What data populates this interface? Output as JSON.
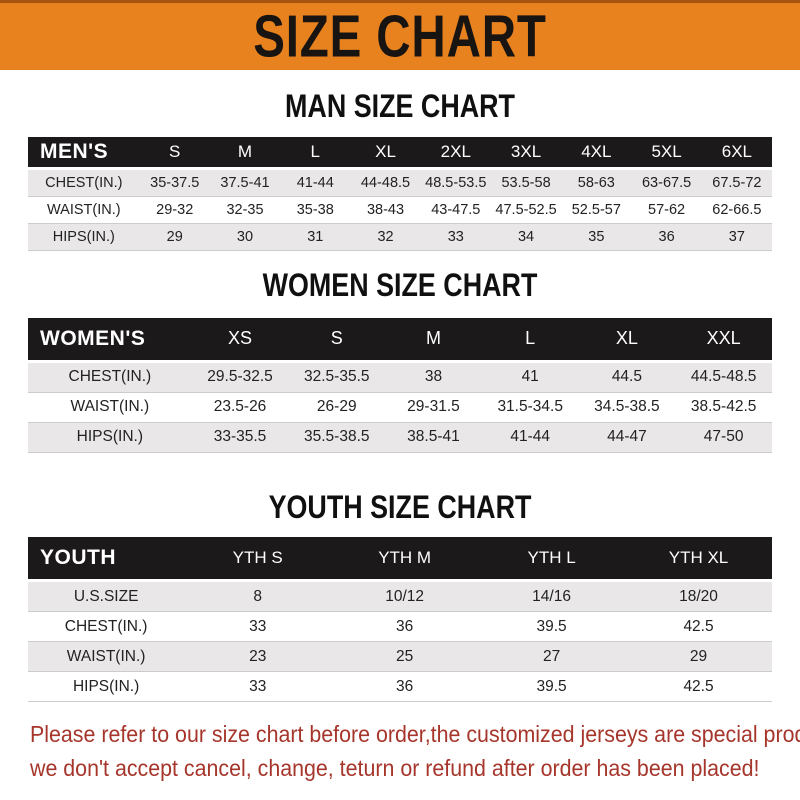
{
  "banner": {
    "title": "SIZE CHART",
    "background_color": "#E8821E",
    "text_color": "#171412"
  },
  "colors": {
    "header_bar_black": "#1B1919",
    "row_gray": "#E9E7E8",
    "row_white": "#FFFFFF",
    "note_red": "#A6362B"
  },
  "tables": [
    {
      "heading": "MAN SIZE CHART",
      "header_label": "MEN'S",
      "columns": [
        "S",
        "M",
        "L",
        "XL",
        "2XL",
        "3XL",
        "4XL",
        "5XL",
        "6XL"
      ],
      "rows": [
        {
          "label": "CHEST(IN.)",
          "values": [
            "35-37.5",
            "37.5-41",
            "41-44",
            "44-48.5",
            "48.5-53.5",
            "53.5-58",
            "58-63",
            "63-67.5",
            "67.5-72"
          ]
        },
        {
          "label": "WAIST(IN.)",
          "values": [
            "29-32",
            "32-35",
            "35-38",
            "38-43",
            "43-47.5",
            "47.5-52.5",
            "52.5-57",
            "57-62",
            "62-66.5"
          ]
        },
        {
          "label": "HIPS(IN.)",
          "values": [
            "29",
            "30",
            "31",
            "32",
            "33",
            "34",
            "35",
            "36",
            "37"
          ]
        }
      ]
    },
    {
      "heading": "WOMEN SIZE CHART",
      "header_label": "WOMEN'S",
      "columns": [
        "XS",
        "S",
        "M",
        "L",
        "XL",
        "XXL"
      ],
      "rows": [
        {
          "label": "CHEST(IN.)",
          "values": [
            "29.5-32.5",
            "32.5-35.5",
            "38",
            "41",
            "44.5",
            "44.5-48.5"
          ]
        },
        {
          "label": "WAIST(IN.)",
          "values": [
            "23.5-26",
            "26-29",
            "29-31.5",
            "31.5-34.5",
            "34.5-38.5",
            "38.5-42.5"
          ]
        },
        {
          "label": "HIPS(IN.)",
          "values": [
            "33-35.5",
            "35.5-38.5",
            "38.5-41",
            "41-44",
            "44-47",
            "47-50"
          ]
        }
      ]
    },
    {
      "heading": "YOUTH SIZE CHART",
      "header_label": "YOUTH",
      "columns": [
        "YTH S",
        "YTH M",
        "YTH L",
        "YTH XL"
      ],
      "rows": [
        {
          "label": "U.S.SIZE",
          "values": [
            "8",
            "10/12",
            "14/16",
            "18/20"
          ]
        },
        {
          "label": "CHEST(IN.)",
          "values": [
            "33",
            "36",
            "39.5",
            "42.5"
          ]
        },
        {
          "label": "WAIST(IN.)",
          "values": [
            "23",
            "25",
            "27",
            "29"
          ]
        },
        {
          "label": "HIPS(IN.)",
          "values": [
            "33",
            "36",
            "39.5",
            "42.5"
          ]
        }
      ]
    }
  ],
  "footer": {
    "line1": "Please refer to our size chart before order,the customized jerseys are special products,",
    "line2": "we don't accept cancel, change, teturn or refund after order has been placed!"
  }
}
